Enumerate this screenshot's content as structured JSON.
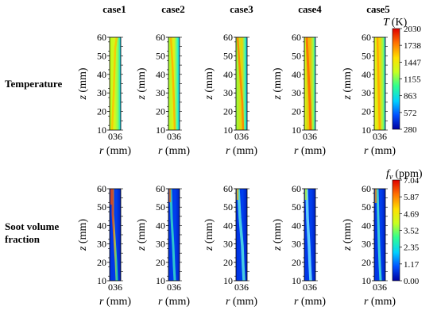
{
  "cases": [
    "case1",
    "case2",
    "case3",
    "case4",
    "case5"
  ],
  "rows": [
    {
      "label_lines": [
        "Temperature"
      ],
      "colorbar": {
        "title_symbol": "T",
        "title_unit": "(K)",
        "ticks": [
          "2030",
          "1738",
          "1447",
          "1155",
          "863",
          "572",
          "280"
        ]
      }
    },
    {
      "label_lines": [
        "Soot volume",
        "fraction"
      ],
      "colorbar": {
        "title_symbol": "f",
        "title_sub": "v",
        "title_unit": "(ppm)",
        "ticks": [
          "7.04",
          "5.87",
          "4.69",
          "3.52",
          "2.35",
          "1.17",
          "0.00"
        ]
      }
    }
  ],
  "axes": {
    "z_symbol": "z",
    "z_unit": "(mm)",
    "z_ticks": [
      "60",
      "50",
      "40",
      "30",
      "20",
      "10"
    ],
    "r_symbol": "r",
    "r_unit": "(mm)",
    "r_ticks": "036"
  },
  "colormap": [
    "#0000a0",
    "#0050ff",
    "#00d0ff",
    "#30ff90",
    "#c8ff20",
    "#ffe000",
    "#ff7000",
    "#e00000"
  ]
}
